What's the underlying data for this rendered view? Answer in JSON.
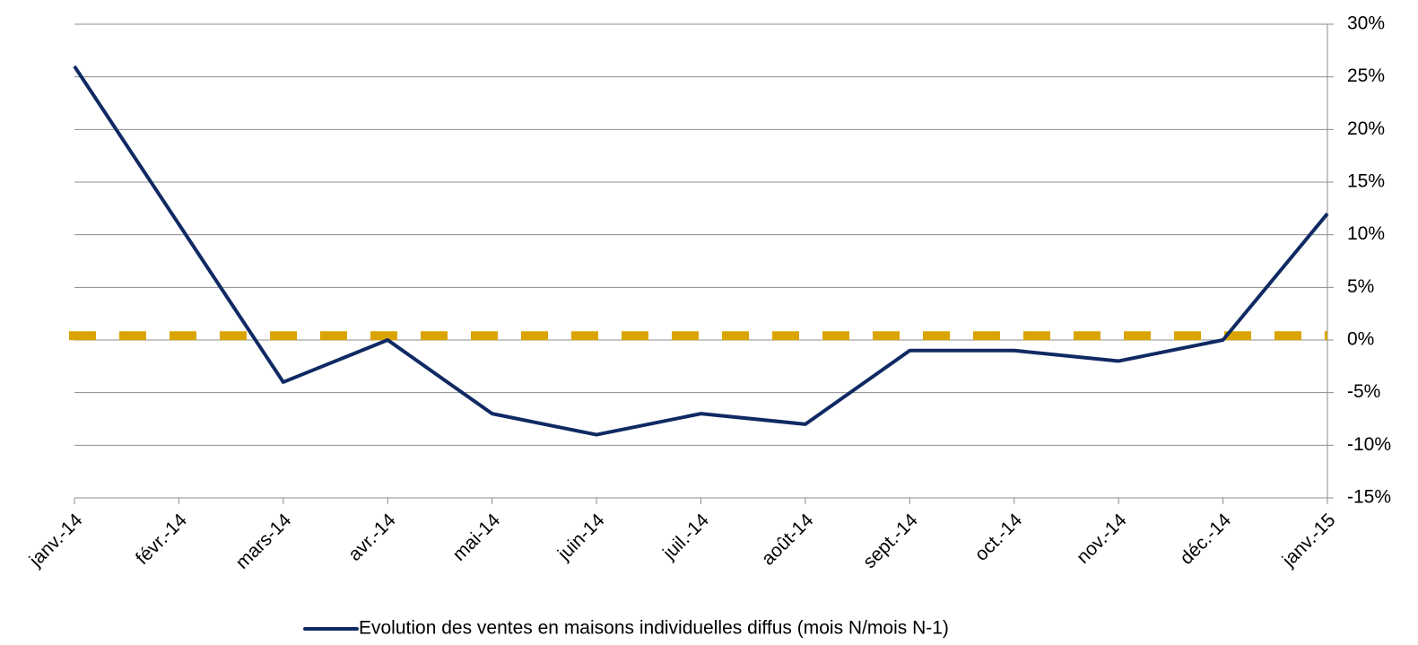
{
  "chart_data": {
    "type": "line",
    "categories": [
      "janv.-14",
      "févr.-14",
      "mars-14",
      "avr.-14",
      "mai-14",
      "juin-14",
      "juil.-14",
      "août-14",
      "sept.-14",
      "oct.-14",
      "nov.-14",
      "déc.-14",
      "janv.-15"
    ],
    "series": [
      {
        "name": "Evolution des ventes en maisons individuelles diffus (mois N/mois N-1)",
        "color": "#0f2a63",
        "values": [
          26,
          11,
          -4,
          0,
          -7,
          -9,
          -7,
          -8,
          -1,
          -1,
          -2,
          0,
          12
        ]
      }
    ],
    "reference_lines": [
      {
        "value": 0.4,
        "color": "#d9a400",
        "dashed": true
      }
    ],
    "ylim": [
      -15,
      30
    ],
    "yticks": [
      {
        "value": -15,
        "label": "-15%"
      },
      {
        "value": -10,
        "label": "-10%"
      },
      {
        "value": -5,
        "label": "-5%"
      },
      {
        "value": 0,
        "label": "0%"
      },
      {
        "value": 5,
        "label": "5%"
      },
      {
        "value": 10,
        "label": "10%"
      },
      {
        "value": 15,
        "label": "15%"
      },
      {
        "value": 20,
        "label": "20%"
      },
      {
        "value": 25,
        "label": "25%"
      },
      {
        "value": 30,
        "label": "30%"
      }
    ],
    "y_axis_side": "right",
    "grid": true,
    "legend": "bottom"
  }
}
